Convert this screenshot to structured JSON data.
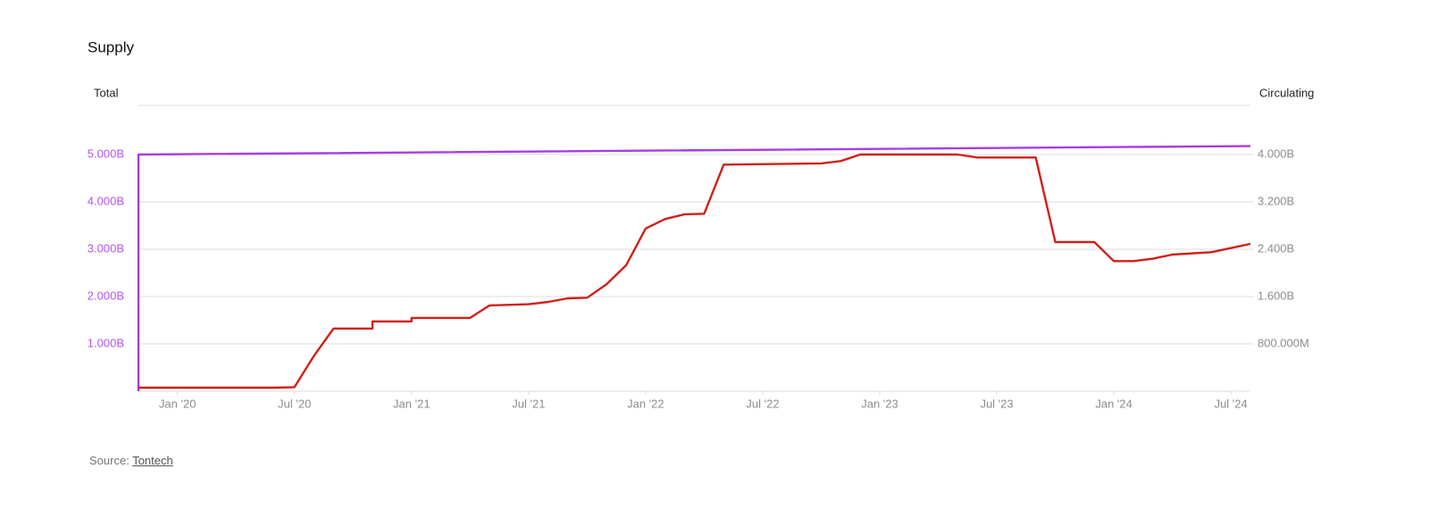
{
  "chart_data": {
    "type": "line",
    "title": "Supply",
    "y_label": "Total",
    "y2_label": "Circulating",
    "xlim": [
      "2019-11",
      "2024-08"
    ],
    "xticks": [
      {
        "value": "2020-01",
        "label": "Jan '20"
      },
      {
        "value": "2020-07",
        "label": "Jul '20"
      },
      {
        "value": "2021-01",
        "label": "Jan '21"
      },
      {
        "value": "2021-07",
        "label": "Jul '21"
      },
      {
        "value": "2022-01",
        "label": "Jan '22"
      },
      {
        "value": "2022-07",
        "label": "Jul '22"
      },
      {
        "value": "2023-01",
        "label": "Jan '23"
      },
      {
        "value": "2023-07",
        "label": "Jul '23"
      },
      {
        "value": "2024-01",
        "label": "Jan '24"
      },
      {
        "value": "2024-07",
        "label": "Jul '24"
      }
    ],
    "ylim": [
      0,
      6000000000
    ],
    "yticks": [
      {
        "value": 1000000000,
        "label": "1.000B"
      },
      {
        "value": 2000000000,
        "label": "2.000B"
      },
      {
        "value": 3000000000,
        "label": "3.000B"
      },
      {
        "value": 4000000000,
        "label": "4.000B"
      },
      {
        "value": 5000000000,
        "label": "5.000B"
      }
    ],
    "y2lim": [
      0,
      4800000000
    ],
    "y2ticks": [
      {
        "value": 800000000,
        "label": "800.000M"
      },
      {
        "value": 1600000000,
        "label": "1.600B"
      },
      {
        "value": 2400000000,
        "label": "2.400B"
      },
      {
        "value": 3200000000,
        "label": "3.200B"
      },
      {
        "value": 4000000000,
        "label": "4.000B"
      }
    ],
    "grid": true,
    "y_color": "#b355e6",
    "y2_color": "#8c8c8c",
    "series": [
      {
        "color": "#a53de6",
        "axis": "y",
        "x": [
          "2019-11",
          "2019-11",
          "2024-08"
        ],
        "values": [
          0,
          5000000000,
          5180000000
        ]
      },
      {
        "color": "#d0201a",
        "axis": "y2",
        "x": [
          "2019-11",
          "2020-06",
          "2020-07",
          "2020-08",
          "2020-09",
          "2020-10",
          "2020-11",
          "2020-11",
          "2021-01",
          "2021-01",
          "2021-04",
          "2021-05",
          "2021-07",
          "2021-08",
          "2021-09",
          "2021-10",
          "2021-11",
          "2021-12",
          "2022-01",
          "2022-02",
          "2022-03",
          "2022-04",
          "2022-05",
          "2022-10",
          "2022-11",
          "2022-12",
          "2023-05",
          "2023-06",
          "2023-09",
          "2023-10",
          "2023-12",
          "2024-01",
          "2024-02",
          "2024-03",
          "2024-04",
          "2024-06",
          "2024-07",
          "2024-08"
        ],
        "values": [
          60000000,
          60000000,
          70000000,
          600000000,
          1060000000,
          1060000000,
          1060000000,
          1180000000,
          1180000000,
          1240000000,
          1240000000,
          1450000000,
          1470000000,
          1510000000,
          1570000000,
          1580000000,
          1810000000,
          2130000000,
          2750000000,
          2910000000,
          2990000000,
          3000000000,
          3830000000,
          3850000000,
          3890000000,
          4000000000,
          4000000000,
          3950000000,
          3950000000,
          2520000000,
          2520000000,
          2200000000,
          2200000000,
          2240000000,
          2310000000,
          2350000000,
          2420000000,
          2490000000
        ]
      }
    ]
  },
  "source": {
    "prefix": "Source:",
    "link": "Tontech"
  }
}
